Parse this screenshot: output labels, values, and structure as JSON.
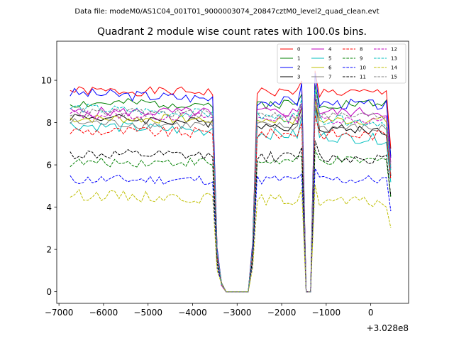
{
  "suptitle": "Data file: modeM0/AS1C04_001T01_9000003074_20847cztM0_level2_quad_clean.evt",
  "chart_data": {
    "type": "line",
    "title": "Quadrant 2 module wise count rates with 100.0s bins.",
    "xlabel": "",
    "ylabel": "",
    "x_offset_label": "+3.028e8",
    "xlim": [
      -7050,
      850
    ],
    "ylim": [
      -0.55,
      11.85
    ],
    "xticks": [
      -7000,
      -6000,
      -5000,
      -4000,
      -3000,
      -2000,
      -1000,
      0
    ],
    "xtick_labels": [
      "−7000",
      "−6000",
      "−5000",
      "−4000",
      "−3000",
      "−2000",
      "−1000",
      "0"
    ],
    "yticks": [
      0,
      2,
      4,
      6,
      8,
      10
    ],
    "ytick_labels": [
      "0",
      "2",
      "4",
      "6",
      "8",
      "10"
    ],
    "legend_position": "top-right",
    "segments": [
      {
        "t_start": -6750,
        "t_end": -3550,
        "step": 100
      },
      {
        "t_start": -3450,
        "t_end": -3150,
        "step": 100
      },
      {
        "t_start": -3050,
        "t_end": -2650,
        "step": 100
      },
      {
        "t_start": -2550,
        "t_end": -1550,
        "step": 100
      },
      {
        "t_start": -1450,
        "t_end": -1350,
        "step": 100
      },
      {
        "t_start": -1250,
        "t_end": 450,
        "step": 100
      }
    ],
    "series": [
      {
        "name": "0",
        "color": "#ff0000",
        "dash": "solid",
        "level": 9.5,
        "end_level": 9.4
      },
      {
        "name": "1",
        "color": "#008000",
        "dash": "solid",
        "level": 8.9,
        "end_level": 8.9
      },
      {
        "name": "2",
        "color": "#0000ff",
        "dash": "solid",
        "level": 9.4,
        "end_level": 8.8
      },
      {
        "name": "3",
        "color": "#000000",
        "dash": "solid",
        "level": 8.3,
        "end_level": 7.6
      },
      {
        "name": "4",
        "color": "#bf00bf",
        "dash": "solid",
        "level": 8.5,
        "end_level": 8.5
      },
      {
        "name": "5",
        "color": "#00bfbf",
        "dash": "solid",
        "level": 7.9,
        "end_level": 7.2
      },
      {
        "name": "6",
        "color": "#bfbf00",
        "dash": "solid",
        "level": 8.2,
        "end_level": 8.1
      },
      {
        "name": "7",
        "color": "#808080",
        "dash": "solid",
        "level": 8.0,
        "end_level": 7.7
      },
      {
        "name": "8",
        "color": "#ff0000",
        "dash": "dashed",
        "level": 7.6,
        "end_level": 7.4
      },
      {
        "name": "9",
        "color": "#008000",
        "dash": "dashed",
        "level": 6.1,
        "end_level": 6.2
      },
      {
        "name": "10",
        "color": "#0000ff",
        "dash": "dashed",
        "level": 5.3,
        "end_level": 5.3
      },
      {
        "name": "11",
        "color": "#000000",
        "dash": "dashed",
        "level": 6.5,
        "end_level": 6.3
      },
      {
        "name": "12",
        "color": "#bf00bf",
        "dash": "dashed",
        "level": 8.4,
        "end_level": 8.1
      },
      {
        "name": "13",
        "color": "#00bfbf",
        "dash": "dashed",
        "level": 8.7,
        "end_level": 8.0
      },
      {
        "name": "14",
        "color": "#bfbf00",
        "dash": "dashed",
        "level": 4.6,
        "end_level": 4.2
      },
      {
        "name": "15",
        "color": "#808080",
        "dash": "dashed",
        "level": 8.5,
        "end_level": 8.3
      }
    ]
  }
}
